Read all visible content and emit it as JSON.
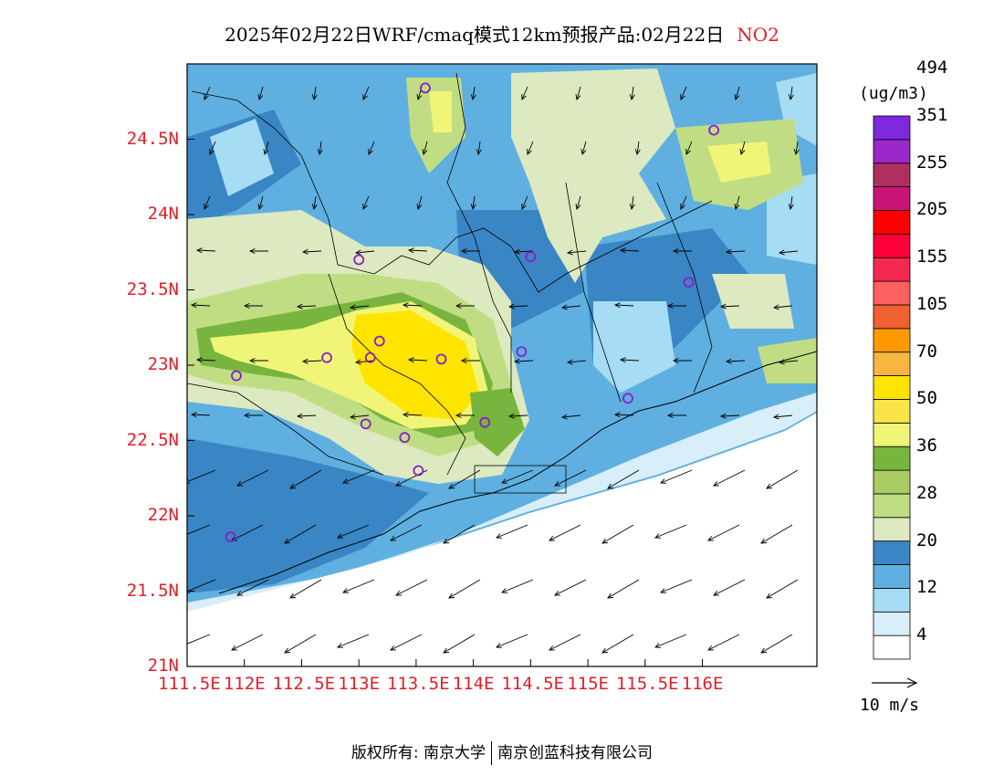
{
  "title": {
    "main": "2025年02月22日WRF/cmaq模式12km预报产品:02月22日",
    "pollutant": "NO2"
  },
  "colorbar": {
    "unit": "(ug/m3)",
    "colors": [
      "#ffffff",
      "#d8eef8",
      "#a6dcf4",
      "#5fb0e0",
      "#3a86c4",
      "#dde9c0",
      "#c1dd84",
      "#a8cc62",
      "#78b53e",
      "#f0f578",
      "#f8e448",
      "#ffe400",
      "#f6b640",
      "#ff9b00",
      "#f06030",
      "#ff6060",
      "#f52850",
      "#ff0038",
      "#ff0000",
      "#c81478",
      "#ae3060",
      "#9a28c8",
      "#7e28e0"
    ],
    "labels": [
      "4",
      "12",
      "20",
      "28",
      "36",
      "50",
      "70",
      "105",
      "155",
      "205",
      "255",
      "351",
      "494"
    ]
  },
  "axes": {
    "x_ticks": [
      "111.5E",
      "112E",
      "112.5E",
      "113E",
      "113.5E",
      "114E",
      "114.5E",
      "115E",
      "115.5E",
      "116E"
    ],
    "y_ticks": [
      "21N",
      "21.5N",
      "22N",
      "22.5N",
      "23N",
      "23.5N",
      "24N",
      "24.5N"
    ]
  },
  "wind_reference": "10 m/s",
  "footer": {
    "left": "版权所有: 南京大学",
    "right": "南京创蓝科技有限公司"
  },
  "stations": [
    {
      "lon": 113.58,
      "lat": 24.84
    },
    {
      "lon": 116.1,
      "lat": 24.56
    },
    {
      "lon": 113.0,
      "lat": 23.7
    },
    {
      "lon": 114.5,
      "lat": 23.72
    },
    {
      "lon": 115.88,
      "lat": 23.55
    },
    {
      "lon": 113.18,
      "lat": 23.16
    },
    {
      "lon": 112.72,
      "lat": 23.05
    },
    {
      "lon": 113.1,
      "lat": 23.05
    },
    {
      "lon": 113.72,
      "lat": 23.04
    },
    {
      "lon": 114.42,
      "lat": 23.09
    },
    {
      "lon": 111.93,
      "lat": 22.93
    },
    {
      "lon": 115.35,
      "lat": 22.78
    },
    {
      "lon": 113.06,
      "lat": 22.61
    },
    {
      "lon": 114.1,
      "lat": 22.62
    },
    {
      "lon": 113.4,
      "lat": 22.52
    },
    {
      "lon": 113.52,
      "lat": 22.3
    },
    {
      "lon": 111.88,
      "lat": 21.86
    }
  ]
}
